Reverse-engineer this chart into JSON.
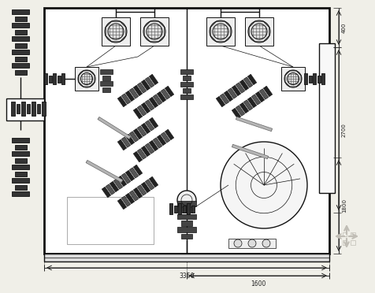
{
  "bg_color": "#f0efe8",
  "line_color": "#111111",
  "dim_color": "#222222",
  "cabinet_bg": "#ffffff",
  "dim_total": "3350",
  "dim_right": "1600",
  "dim_h1": "400",
  "dim_h2": "2700",
  "dim_h3": "1800",
  "figsize": [
    4.76,
    3.72
  ],
  "dpi": 100,
  "lw_outer": 2.0,
  "lw_inner": 1.0,
  "lw_thin": 0.5,
  "lw_comp": 0.7
}
